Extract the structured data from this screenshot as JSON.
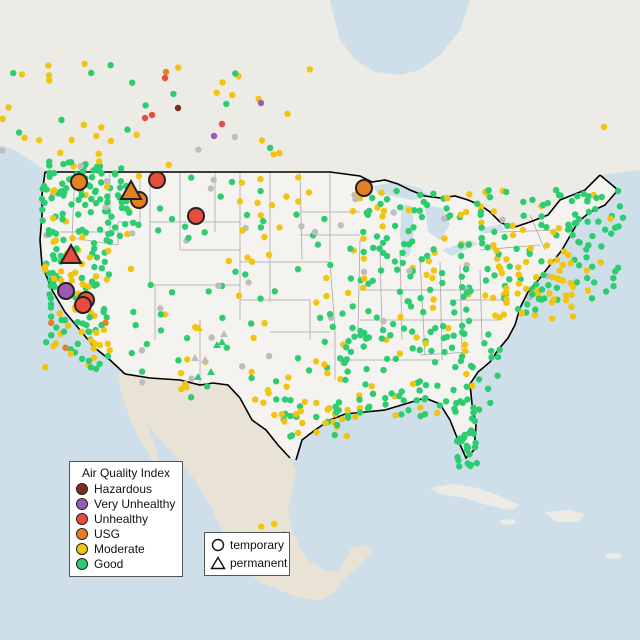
{
  "legend": {
    "title": "Air Quality Index",
    "categories": [
      {
        "label": "Hazardous",
        "color": "#7e2b1e"
      },
      {
        "label": "Very Unhealthy",
        "color": "#9b59b6"
      },
      {
        "label": "Unhealthy",
        "color": "#e74c3c"
      },
      {
        "label": "USG",
        "color": "#e67e22"
      },
      {
        "label": "Moderate",
        "color": "#f1c40f"
      },
      {
        "label": "Good",
        "color": "#2ecc71"
      }
    ],
    "no_data_color": "#bdbdbd",
    "shapes": [
      {
        "label": "temporary",
        "shape": "circle"
      },
      {
        "label": "permanent",
        "shape": "triangle"
      }
    ]
  },
  "colors": {
    "water": "#cfdfe9",
    "land": "#ecebe6",
    "us_land": "#f4f3ef",
    "mexico_land": "#e9e3d6",
    "boundary": "#000000",
    "state_line": "#a8a8a8"
  }
}
